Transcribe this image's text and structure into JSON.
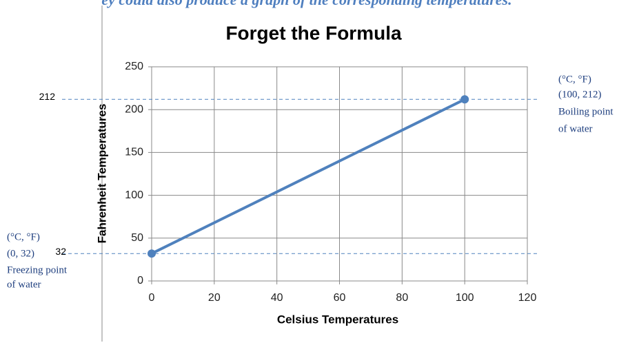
{
  "caption": "ey could also produce a graph of the corresponding temperatures.",
  "chart_data": {
    "type": "line",
    "title": "Forget the Formula",
    "x_label": "Celsius Temperatures",
    "y_label": "Fahrenheit Temperatures",
    "x": [
      0,
      100
    ],
    "values": [
      32,
      212
    ],
    "color": "#4f81bd",
    "xlim": [
      0,
      120
    ],
    "xticks": [
      0,
      20,
      40,
      60,
      80,
      100,
      120
    ],
    "ylim": [
      0,
      250
    ],
    "yticks": [
      0,
      50,
      100,
      150,
      200,
      250
    ],
    "grid": true,
    "reference_lines": [
      {
        "value": 212,
        "label": "212"
      },
      {
        "value": 32,
        "label": "32"
      }
    ],
    "annotations": [
      {
        "lines": [
          "(°C, °F)",
          "(0, 32)",
          "Freezing point",
          "of water"
        ]
      },
      {
        "lines": [
          "(°C, °F)",
          "(100, 212)",
          "Boiling point",
          "of water"
        ]
      }
    ]
  }
}
